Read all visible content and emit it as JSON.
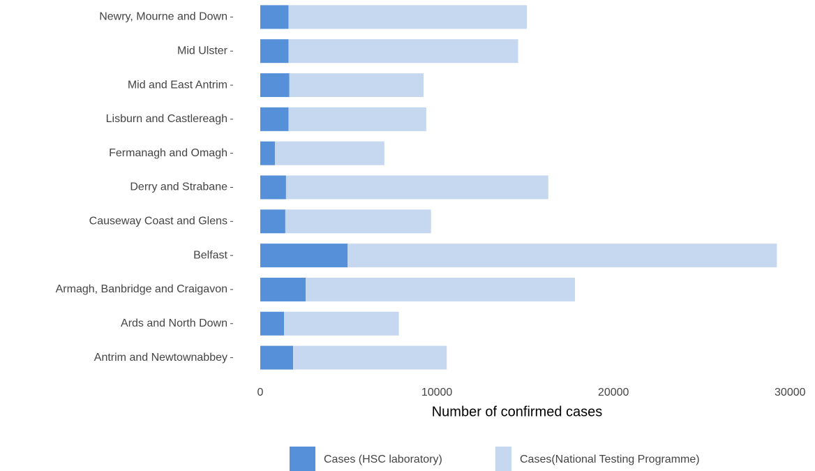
{
  "chart_data": {
    "type": "stacked-bar-horizontal",
    "x_label": "Number of confirmed cases",
    "categories": [
      "Newry, Mourne and Down",
      "Mid Ulster",
      "Mid and East Antrim",
      "Lisburn and Castlereagh",
      "Fermanagh and Omagh",
      "Derry and Strabane",
      "Causeway Coast and Glens",
      "Belfast",
      "Armagh, Banbridge and Craigavon",
      "Ards and North Down",
      "Antrim and Newtownabbey"
    ],
    "series": [
      {
        "name": "Cases (HSC laboratory)",
        "color": "#5590d8",
        "values": [
          1600,
          1600,
          1650,
          1600,
          830,
          1460,
          1420,
          4950,
          2570,
          1350,
          1860
        ]
      },
      {
        "name": "Cases(National Testing Programme)",
        "color": "#c6d8f0",
        "values": [
          13500,
          13000,
          7600,
          7800,
          6200,
          14850,
          8250,
          24300,
          15250,
          6500,
          8700
        ]
      }
    ],
    "xlim": [
      -1460,
      30700
    ],
    "xticks": [
      0,
      10000,
      20000,
      30000
    ],
    "grid": false,
    "legend": "bottom"
  }
}
